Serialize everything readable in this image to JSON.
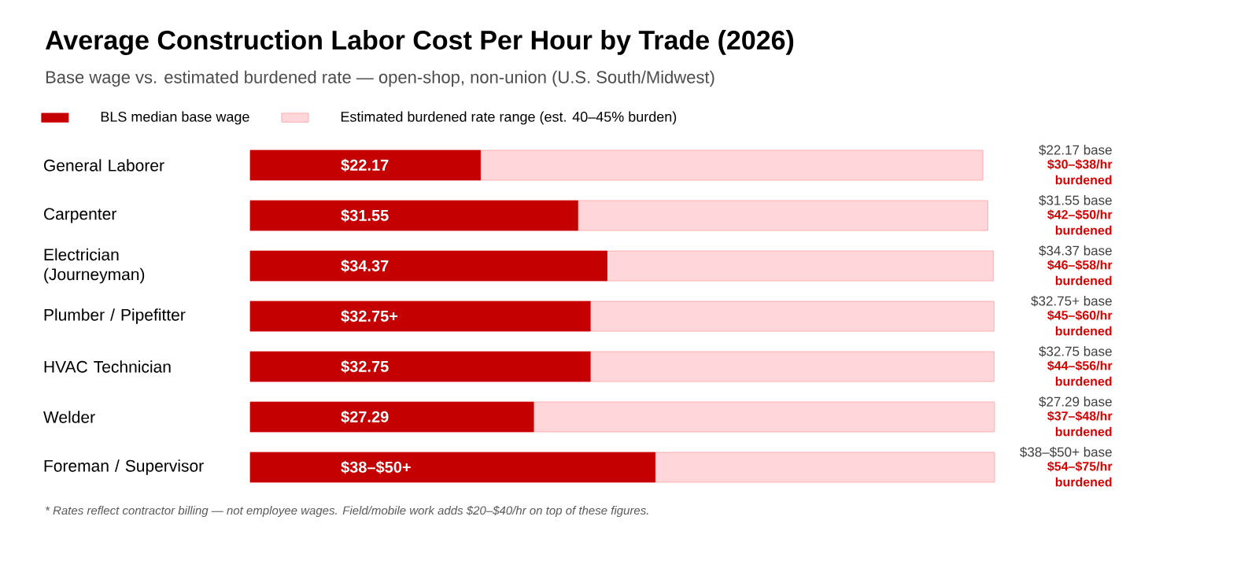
{
  "chart_data": {
    "type": "bar",
    "orientation": "horizontal",
    "stacked": true,
    "xlim": [
      0,
      71.7
    ],
    "title": "Average Construction Labor Cost Per Hour by Trade (2026)",
    "subtitle": "Base wage vs. estimated burdened rate — open-shop, non-union (U.S. South/Midwest)",
    "categories": [
      "General Laborer",
      "Carpenter",
      "Electrician (Journeyman)",
      "Plumber / Pipefitter",
      "HVAC Technician",
      "Welder",
      "Foreman / Supervisor"
    ],
    "series": [
      {
        "name": "BLS median base wage",
        "color": "#c40000",
        "values": [
          22.17,
          31.55,
          34.37,
          32.75,
          32.75,
          27.29,
          39
        ],
        "value_labels": [
          "$22.17",
          "$31.55",
          "$34.37",
          "$32.75+",
          "$32.75",
          "$27.29",
          "$38–$50+"
        ]
      },
      {
        "name": "Estimated burdened rate range (est. 40–45% burden)",
        "color": "#ffd6da",
        "values": [
          48.4,
          39.5,
          37.2,
          38.9,
          38.9,
          44.4,
          32.7
        ]
      }
    ],
    "annotations": [
      "$22.17 base",
      "$30–$38/hr burdened",
      "$31.55 base",
      "$42–$50/hr burdened",
      "$34.37 base",
      "$46–$58/hr burdened",
      "$32.75+ base",
      "$45–$60/hr burdened",
      "$32.75 base",
      "$44–$56/hr burdened",
      "$27.29 base",
      "$37–$48/hr burdened",
      "$38–$50+ base",
      "$54–$75/hr burdened",
      "* Rates reflect contractor billing — not employee wages. Field/mobile work adds $20–$40/hr on top of these figures."
    ],
    "legend": "top left"
  }
}
